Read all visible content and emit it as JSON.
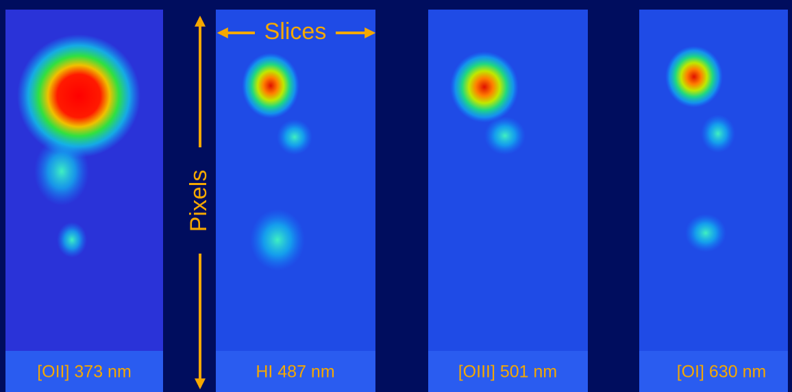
{
  "annotations": {
    "horizontal_arrow": "Slices",
    "vertical_arrow": "Pixels"
  },
  "panels": [
    {
      "label": "[OII] 373 nm"
    },
    {
      "label": "HI 487 nm"
    },
    {
      "label": "[OIII] 501 nm"
    },
    {
      "label": "[OI] 630 nm"
    }
  ]
}
